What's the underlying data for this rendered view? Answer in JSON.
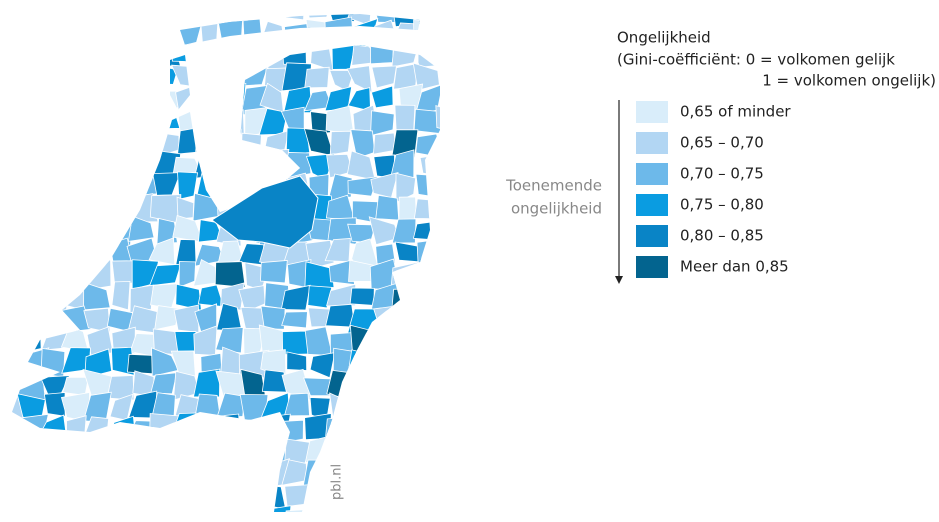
{
  "legend": {
    "title": "Ongelijkheid",
    "subtitle": [
      "(Gini-coëfficiënt: 0 = volkomen gelijk",
      "1 = volkomen ongelijk)"
    ],
    "direction_label": [
      "Toenemende",
      "ongelijkheid"
    ],
    "items": [
      {
        "label": "0,65 of minder",
        "color": "#d9edfa"
      },
      {
        "label": "0,65 – 0,70",
        "color": "#b2d6f3"
      },
      {
        "label": "0,70 – 0,75",
        "color": "#6db9ea"
      },
      {
        "label": "0,75 – 0,80",
        "color": "#0a9ce1"
      },
      {
        "label": "0,80 – 0,85",
        "color": "#0984c6"
      },
      {
        "label": "Meer dan 0,85",
        "color": "#03648f"
      }
    ]
  },
  "watermark": "pbl.nl"
}
